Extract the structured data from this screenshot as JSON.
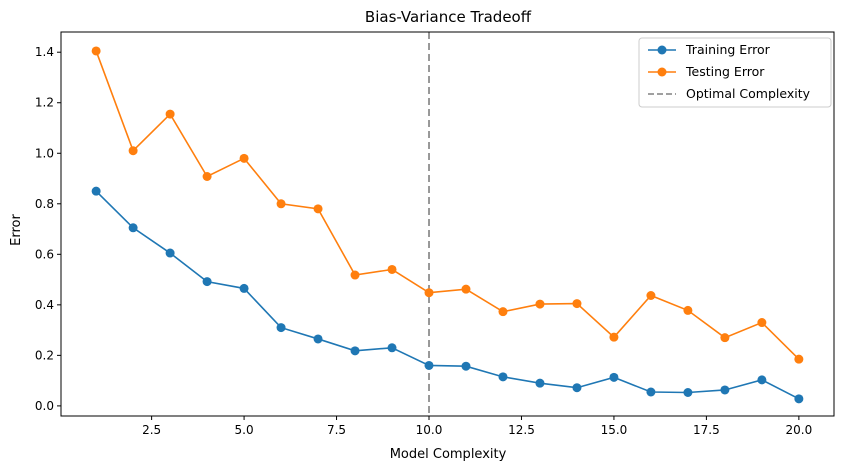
{
  "chart_data": {
    "type": "line",
    "title": "Bias-Variance Tradeoff",
    "xlabel": "Model Complexity",
    "ylabel": "Error",
    "xlim": [
      0.05,
      20.95
    ],
    "ylim": [
      -0.04,
      1.48
    ],
    "xticks": [
      2.5,
      5.0,
      7.5,
      10.0,
      12.5,
      15.0,
      17.5,
      20.0
    ],
    "xtick_labels": [
      "2.5",
      "5.0",
      "7.5",
      "10.0",
      "12.5",
      "15.0",
      "17.5",
      "20.0"
    ],
    "yticks": [
      0.0,
      0.2,
      0.4,
      0.6,
      0.8,
      1.0,
      1.2,
      1.4
    ],
    "ytick_labels": [
      "0.0",
      "0.2",
      "0.4",
      "0.6",
      "0.8",
      "1.0",
      "1.2",
      "1.4"
    ],
    "x": [
      1,
      2,
      3,
      4,
      5,
      6,
      7,
      8,
      9,
      10,
      11,
      12,
      13,
      14,
      15,
      16,
      17,
      18,
      19,
      20
    ],
    "series": [
      {
        "name": "Training Error",
        "color": "#1f77b4",
        "marker": "circle",
        "values": [
          0.85,
          0.705,
          0.605,
          0.492,
          0.465,
          0.31,
          0.265,
          0.218,
          0.23,
          0.16,
          0.157,
          0.115,
          0.09,
          0.072,
          0.113,
          0.055,
          0.053,
          0.063,
          0.103,
          0.028
        ]
      },
      {
        "name": "Testing Error",
        "color": "#ff7f0e",
        "marker": "circle",
        "values": [
          1.405,
          1.01,
          1.155,
          0.908,
          0.98,
          0.8,
          0.78,
          0.518,
          0.54,
          0.448,
          0.462,
          0.373,
          0.403,
          0.405,
          0.272,
          0.437,
          0.378,
          0.27,
          0.33,
          0.185
        ]
      }
    ],
    "reference_line": {
      "name": "Optimal Complexity",
      "x": 10,
      "color": "#808080",
      "style": "dashed"
    },
    "legend_position": "top-right",
    "grid": false
  }
}
